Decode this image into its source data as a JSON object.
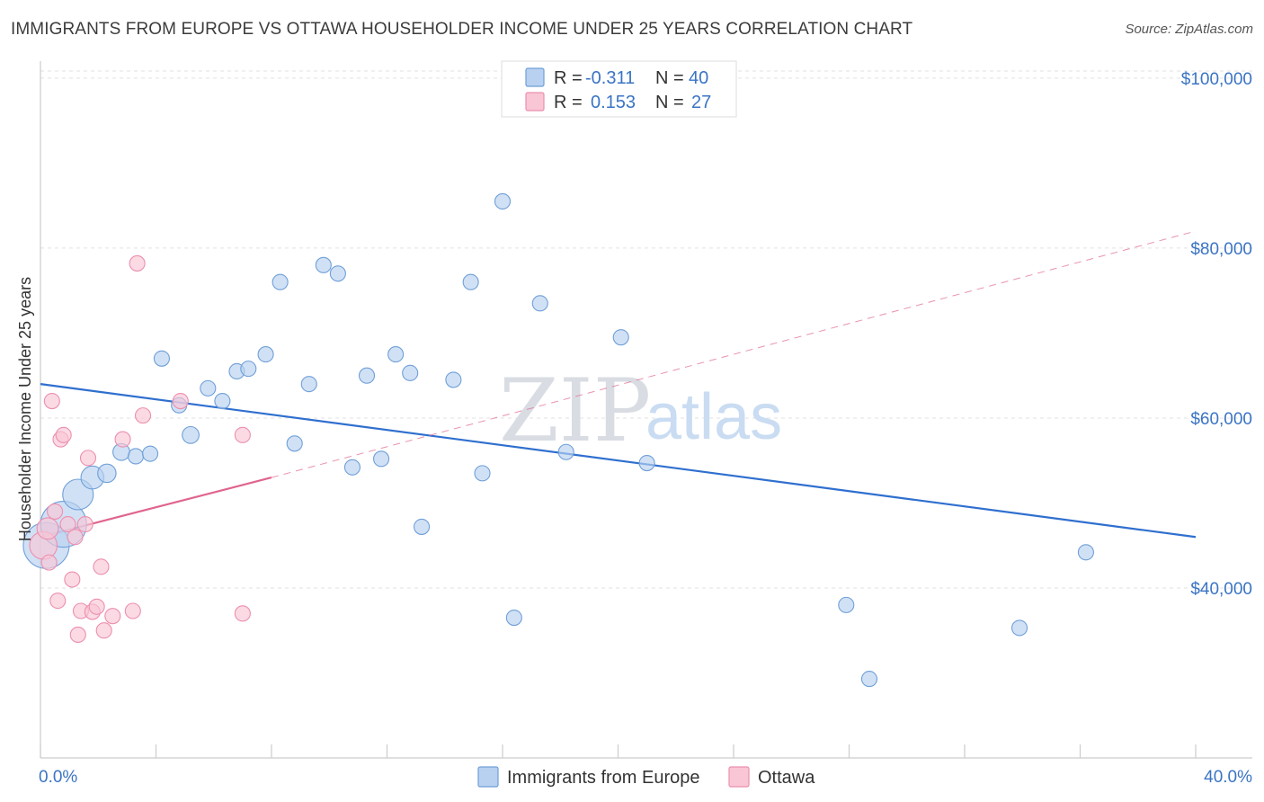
{
  "header": {
    "title": "IMMIGRANTS FROM EUROPE VS OTTAWA HOUSEHOLDER INCOME UNDER 25 YEARS CORRELATION CHART",
    "source": "Source: ZipAtlas.com"
  },
  "watermark": {
    "zip": "ZIP",
    "atlas": "atlas"
  },
  "legend_top": {
    "rows": [
      {
        "r_label": "R =",
        "r_value": "-0.311",
        "n_label": "N =",
        "n_value": "40"
      },
      {
        "r_label": "R =",
        "r_value": "0.153",
        "n_label": "N =",
        "n_value": "27"
      }
    ]
  },
  "legend_bottom": {
    "items": [
      "Immigrants from Europe",
      "Ottawa"
    ]
  },
  "chart_data": {
    "type": "scatter",
    "xlabel": "",
    "ylabel": "Householder Income Under 25 years",
    "xlim": [
      0,
      40
    ],
    "ylim": [
      20000,
      102000
    ],
    "x_tick_labels": [
      {
        "value": 0,
        "label": "0.0%"
      },
      {
        "value": 40,
        "label": "40.0%"
      }
    ],
    "y_ticks": [
      {
        "value": 40000,
        "label": "$40,000"
      },
      {
        "value": 60000,
        "label": "$60,000"
      },
      {
        "value": 80000,
        "label": "$80,000"
      },
      {
        "value": 100000,
        "label": "$100,000"
      }
    ],
    "colors": {
      "europe_fill": "#b8d1f0",
      "europe_stroke": "#6f9fd8",
      "europe_line": "#2f6fcf",
      "ottawa_fill": "#f9c6d5",
      "ottawa_stroke": "#ec8fae",
      "ottawa_line": "#e0658d"
    },
    "series": [
      {
        "name": "Immigrants from Europe",
        "points": [
          {
            "x": 0.2,
            "y": 45000,
            "s": 3
          },
          {
            "x": 0.8,
            "y": 47500,
            "s": 3
          },
          {
            "x": 1.3,
            "y": 51000,
            "s": 2
          },
          {
            "x": 1.8,
            "y": 53000,
            "s": 1.5
          },
          {
            "x": 2.3,
            "y": 53500,
            "s": 1.2
          },
          {
            "x": 2.8,
            "y": 56000,
            "s": 1.1
          },
          {
            "x": 3.3,
            "y": 55500,
            "s": 1
          },
          {
            "x": 3.8,
            "y": 55800,
            "s": 1
          },
          {
            "x": 4.2,
            "y": 67000,
            "s": 1
          },
          {
            "x": 4.8,
            "y": 61500,
            "s": 1
          },
          {
            "x": 5.2,
            "y": 58000,
            "s": 1.1
          },
          {
            "x": 5.8,
            "y": 63500,
            "s": 1
          },
          {
            "x": 6.3,
            "y": 62000,
            "s": 1
          },
          {
            "x": 6.8,
            "y": 65500,
            "s": 1
          },
          {
            "x": 7.2,
            "y": 65800,
            "s": 1
          },
          {
            "x": 7.8,
            "y": 67500,
            "s": 1
          },
          {
            "x": 8.3,
            "y": 76000,
            "s": 1
          },
          {
            "x": 8.8,
            "y": 57000,
            "s": 1
          },
          {
            "x": 9.3,
            "y": 64000,
            "s": 1
          },
          {
            "x": 9.8,
            "y": 78000,
            "s": 1
          },
          {
            "x": 10.3,
            "y": 77000,
            "s": 1
          },
          {
            "x": 10.8,
            "y": 54200,
            "s": 1
          },
          {
            "x": 11.3,
            "y": 65000,
            "s": 1
          },
          {
            "x": 11.8,
            "y": 55200,
            "s": 1
          },
          {
            "x": 12.3,
            "y": 67500,
            "s": 1
          },
          {
            "x": 12.8,
            "y": 65300,
            "s": 1
          },
          {
            "x": 13.2,
            "y": 47200,
            "s": 1
          },
          {
            "x": 14.3,
            "y": 64500,
            "s": 1
          },
          {
            "x": 14.9,
            "y": 76000,
            "s": 1
          },
          {
            "x": 15.3,
            "y": 53500,
            "s": 1
          },
          {
            "x": 16.0,
            "y": 85500,
            "s": 1
          },
          {
            "x": 16.4,
            "y": 36500,
            "s": 1
          },
          {
            "x": 17.3,
            "y": 73500,
            "s": 1
          },
          {
            "x": 18.2,
            "y": 56000,
            "s": 1
          },
          {
            "x": 20.1,
            "y": 69500,
            "s": 1
          },
          {
            "x": 21.0,
            "y": 54700,
            "s": 1
          },
          {
            "x": 27.9,
            "y": 38000,
            "s": 1
          },
          {
            "x": 28.7,
            "y": 29300,
            "s": 1
          },
          {
            "x": 33.9,
            "y": 35300,
            "s": 1
          },
          {
            "x": 36.2,
            "y": 44200,
            "s": 1
          }
        ]
      },
      {
        "name": "Ottawa",
        "points": [
          {
            "x": 0.1,
            "y": 45000,
            "s": 1.8
          },
          {
            "x": 0.25,
            "y": 47000,
            "s": 1.4
          },
          {
            "x": 0.3,
            "y": 43000,
            "s": 1
          },
          {
            "x": 0.4,
            "y": 62000,
            "s": 1
          },
          {
            "x": 0.5,
            "y": 49000,
            "s": 1
          },
          {
            "x": 0.6,
            "y": 38500,
            "s": 1
          },
          {
            "x": 0.7,
            "y": 57500,
            "s": 1
          },
          {
            "x": 0.8,
            "y": 58000,
            "s": 1
          },
          {
            "x": 0.95,
            "y": 47500,
            "s": 1
          },
          {
            "x": 1.1,
            "y": 41000,
            "s": 1
          },
          {
            "x": 1.2,
            "y": 46000,
            "s": 1
          },
          {
            "x": 1.3,
            "y": 34500,
            "s": 1
          },
          {
            "x": 1.4,
            "y": 37300,
            "s": 1
          },
          {
            "x": 1.55,
            "y": 47500,
            "s": 1
          },
          {
            "x": 1.65,
            "y": 55300,
            "s": 1
          },
          {
            "x": 1.8,
            "y": 37200,
            "s": 1
          },
          {
            "x": 1.95,
            "y": 37800,
            "s": 1
          },
          {
            "x": 2.1,
            "y": 42500,
            "s": 1
          },
          {
            "x": 2.2,
            "y": 35000,
            "s": 1
          },
          {
            "x": 2.5,
            "y": 36700,
            "s": 1
          },
          {
            "x": 2.85,
            "y": 57500,
            "s": 1
          },
          {
            "x": 3.2,
            "y": 37300,
            "s": 1
          },
          {
            "x": 3.35,
            "y": 78200,
            "s": 1
          },
          {
            "x": 3.55,
            "y": 60300,
            "s": 1
          },
          {
            "x": 4.85,
            "y": 62000,
            "s": 1
          },
          {
            "x": 7.0,
            "y": 58000,
            "s": 1
          },
          {
            "x": 7.0,
            "y": 37000,
            "s": 1
          }
        ]
      }
    ],
    "trend_lines": [
      {
        "series": "Immigrants from Europe",
        "x": [
          0,
          40
        ],
        "y": [
          64000,
          46000
        ],
        "style": "solid"
      },
      {
        "series": "Ottawa",
        "x": [
          0,
          8
        ],
        "y": [
          46000,
          53000
        ],
        "style": "solid"
      },
      {
        "series": "Ottawa",
        "x": [
          8,
          40
        ],
        "y": [
          53000,
          82000
        ],
        "style": "dashed"
      }
    ],
    "grid": true
  }
}
